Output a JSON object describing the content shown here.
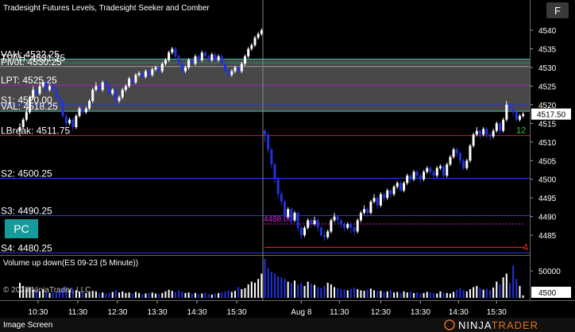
{
  "chart_data": {
    "type": "candlestick",
    "title": "Tradesight Futures Levels, Tradesight Seeker and Comber",
    "xlim": [
      -6,
      154
    ],
    "xticks": [
      {
        "value": 5.5,
        "label": "10:30"
      },
      {
        "value": 17.5,
        "label": "11:30"
      },
      {
        "value": 29.5,
        "label": "12:30"
      },
      {
        "value": 41.5,
        "label": "13:30"
      },
      {
        "value": 53.5,
        "label": "14:30"
      },
      {
        "value": 65.5,
        "label": "15:30"
      },
      {
        "value": 85,
        "label": "Aug 8"
      },
      {
        "value": 96.5,
        "label": "11:30"
      },
      {
        "value": 109,
        "label": "12:30"
      },
      {
        "value": 121,
        "label": "13:30"
      },
      {
        "value": 132.5,
        "label": "14:30"
      },
      {
        "value": 144,
        "label": "15:30"
      }
    ],
    "ylim": [
      4479.7,
      4548.1
    ],
    "yticks": [
      4485,
      4490,
      4495,
      4500,
      4505,
      4510,
      4515,
      4520,
      4525,
      4530,
      4535,
      4540
    ],
    "open": [
      4513,
      4514,
      4516,
      4518,
      4522,
      4524,
      4523,
      4525,
      4526,
      4524,
      4525,
      4524,
      4522,
      4521,
      4517,
      4515,
      4516,
      4514,
      4517,
      4519,
      4518,
      4519,
      4521,
      4524,
      4525,
      4524,
      4526,
      4525,
      4523,
      4524,
      4521,
      4522,
      4524,
      4525,
      4527,
      4526,
      4528,
      4528.5,
      4527.5,
      4529,
      4528,
      4529.5,
      4530,
      4529,
      4531,
      4532,
      4534,
      4535,
      4533,
      4531,
      4529,
      4530,
      4532,
      4531,
      4533,
      4532,
      4534,
      4533,
      4532,
      4533.5,
      4532,
      4533,
      4531,
      4529,
      4528,
      4529,
      4530,
      4529,
      4531,
      4533,
      4535,
      4536,
      4538,
      4539,
      4513,
      4512,
      4508,
      4504,
      4500,
      4496,
      4494,
      4490,
      4492,
      4489,
      4491,
      4487,
      4485,
      4487,
      4489,
      4488,
      4489,
      4487,
      4485,
      4484.5,
      4486,
      4489,
      4490,
      4489,
      4488,
      4487,
      4488,
      4487,
      4486,
      4489,
      4491,
      4492,
      4491,
      4494,
      4495,
      4493,
      4496,
      4495,
      4497,
      4496,
      4498,
      4499,
      4497,
      4499,
      4501,
      4500,
      4502,
      4501,
      4500,
      4502,
      4503,
      4502,
      4501,
      4503,
      4503.5,
      4501,
      4504,
      4506,
      4508,
      4507,
      4505,
      4503,
      4505,
      4509,
      4512,
      4513,
      4512,
      4513.5,
      4512,
      4511.5,
      4513,
      4515,
      4513,
      4516,
      4520,
      4519,
      4518,
      4516,
      4517
    ],
    "high": [
      4515,
      4516.5,
      4519,
      4522.5,
      4525,
      4524.5,
      4526,
      4526.5,
      4526.5,
      4525.5,
      4525.5,
      4524.5,
      4522.5,
      4521.5,
      4517.5,
      4516.5,
      4516.5,
      4517.5,
      4519.5,
      4519.5,
      4519.5,
      4521.5,
      4524.5,
      4526,
      4525.5,
      4526.5,
      4526.5,
      4525.5,
      4524.5,
      4524.5,
      4522.5,
      4524.5,
      4525.5,
      4527.5,
      4527.5,
      4528.5,
      4529,
      4529,
      4529.5,
      4529.5,
      4530,
      4530.5,
      4530.5,
      4531.5,
      4532.5,
      4534.5,
      4535.5,
      4535.5,
      4533.5,
      4531.5,
      4530.5,
      4532.5,
      4532.5,
      4533.5,
      4533.5,
      4534.5,
      4534.5,
      4533.5,
      4534,
      4534,
      4533.5,
      4533.5,
      4531.5,
      4529.5,
      4529.5,
      4530.5,
      4530.5,
      4531.5,
      4533.5,
      4535.5,
      4536.5,
      4538.5,
      4539.5,
      4540.5,
      4513.5,
      4512.5,
      4508.5,
      4504.5,
      4500.5,
      4497,
      4494.5,
      4492.5,
      4492.5,
      4491.5,
      4491.5,
      4487.5,
      4487.5,
      4489.5,
      4489.5,
      4490,
      4489.5,
      4487.5,
      4486,
      4486.5,
      4489.5,
      4491,
      4490.5,
      4489.5,
      4488.5,
      4488.5,
      4488.5,
      4487.5,
      4489.5,
      4491.5,
      4493,
      4492.5,
      4494.5,
      4496,
      4495.5,
      4496.5,
      4496.5,
      4497.5,
      4497.5,
      4498.5,
      4499.5,
      4499.5,
      4499.5,
      4501.5,
      4501.5,
      4502.5,
      4502.5,
      4501.5,
      4502.5,
      4503.5,
      4503.5,
      4502.5,
      4503.5,
      4504,
      4504,
      4504.5,
      4506.5,
      4508.5,
      4508.5,
      4507.5,
      4505.5,
      4505.5,
      4509.5,
      4512.5,
      4514,
      4513.5,
      4514,
      4514,
      4512.5,
      4513.5,
      4515.5,
      4515.5,
      4516.5,
      4521,
      4520.5,
      4519.5,
      4518.5,
      4517.5,
      4518
    ],
    "low": [
      4511.5,
      4513.5,
      4515.5,
      4517.5,
      4521.5,
      4522,
      4522.5,
      4524.5,
      4523.5,
      4523.5,
      4523.5,
      4521.5,
      4520,
      4516.5,
      4514,
      4514.5,
      4513,
      4513.5,
      4516.5,
      4517.5,
      4517.5,
      4518.5,
      4520.5,
      4523.5,
      4523.5,
      4523.5,
      4524.5,
      4522.5,
      4522.5,
      4520.5,
      4520.5,
      4521.5,
      4523.5,
      4524.5,
      4525.5,
      4525.5,
      4527.5,
      4527,
      4527,
      4527.5,
      4527.5,
      4529,
      4528.5,
      4528.5,
      4530.5,
      4531.5,
      4533.5,
      4532.5,
      4530.5,
      4528,
      4528.5,
      4529.5,
      4530.5,
      4530.5,
      4531.5,
      4531.5,
      4532.5,
      4531.5,
      4531.5,
      4531.5,
      4531.5,
      4530.5,
      4528.5,
      4527.5,
      4527.5,
      4528.5,
      4528.5,
      4528.5,
      4530.5,
      4532.5,
      4534.5,
      4535.5,
      4537.5,
      4538.5,
      4510,
      4507,
      4503,
      4499,
      4495,
      4493,
      4489,
      4489.5,
      4488,
      4488.5,
      4486,
      4484,
      4484.5,
      4486.5,
      4487,
      4487.5,
      4486,
      4484.5,
      4483.5,
      4484,
      4485.5,
      4488.5,
      4488,
      4487,
      4486,
      4486.5,
      4485.5,
      4485,
      4485.5,
      4488.5,
      4490.5,
      4490,
      4490.5,
      4493.5,
      4492,
      4492.5,
      4494,
      4494.5,
      4495,
      4495.5,
      4497.5,
      4496.5,
      4496.5,
      4498.5,
      4499,
      4499.5,
      4500,
      4499,
      4499.5,
      4501.5,
      4501,
      4500,
      4500.5,
      4502.5,
      4500.5,
      4500.5,
      4503.5,
      4505.5,
      4506,
      4504,
      4502.5,
      4502.5,
      4504.5,
      4508.5,
      4511.5,
      4511,
      4511.5,
      4511,
      4510.5,
      4511,
      4512.5,
      4512,
      4512.5,
      4515.5,
      4518,
      4517,
      4515.5,
      4515.5,
      4516.5
    ],
    "close": [
      4514,
      4516,
      4518,
      4522,
      4524,
      4523,
      4525,
      4526,
      4524,
      4525,
      4524,
      4522,
      4521,
      4517,
      4515,
      4516,
      4514,
      4517,
      4519,
      4518,
      4519,
      4521,
      4524,
      4525,
      4524,
      4526,
      4525,
      4523,
      4524,
      4521,
      4522,
      4524,
      4525,
      4527,
      4526,
      4528,
      4528.5,
      4527.5,
      4529,
      4528,
      4529.5,
      4530,
      4529,
      4531,
      4532,
      4534,
      4535,
      4533,
      4531,
      4529,
      4530,
      4532,
      4531,
      4533,
      4532,
      4534,
      4533,
      4532,
      4533.5,
      4532,
      4533,
      4531,
      4529,
      4528,
      4529,
      4530,
      4529,
      4531,
      4533,
      4535,
      4536,
      4538,
      4539,
      4540,
      4512,
      4508,
      4504,
      4500,
      4496,
      4494,
      4490,
      4492,
      4489,
      4491,
      4487,
      4485,
      4487,
      4489,
      4488,
      4489,
      4487,
      4485,
      4484.5,
      4486,
      4489,
      4490,
      4489,
      4488,
      4487,
      4488,
      4487,
      4486,
      4489,
      4491,
      4492,
      4491,
      4494,
      4495,
      4493,
      4496,
      4495,
      4497,
      4496,
      4498,
      4499,
      4497,
      4499,
      4501,
      4500,
      4502,
      4501,
      4500,
      4502,
      4503,
      4502,
      4501,
      4503,
      4503.5,
      4501,
      4504,
      4506,
      4508,
      4507,
      4505,
      4503,
      4505,
      4509,
      4512,
      4513,
      4512,
      4513.5,
      4512,
      4511.5,
      4513,
      4515,
      4513,
      4516,
      4520,
      4519,
      4518,
      4516,
      4517,
      4517.5
    ],
    "up_color": "#ffffff",
    "down_color": "#2233dd",
    "price_marker": {
      "value": 4517.5,
      "label": "4517.50"
    },
    "levels": [
      {
        "label": "VAH: 4532.25",
        "value": 4532.25,
        "color": "#3fb8a0"
      },
      {
        "label": "TVAH: 4531.25",
        "value": 4531.25,
        "color": "#2e8b57"
      },
      {
        "label": "Pivot: 4530.25",
        "value": 4530.25,
        "color": "#9a9a9a"
      },
      {
        "label": "LPT: 4525.25",
        "value": 4525.25,
        "color": "#a020c0"
      },
      {
        "label": "S1: 4520.00",
        "value": 4520,
        "color": "#2a3ad8"
      },
      {
        "label": "VAL: 4518.25",
        "value": 4518.25,
        "color": "#3fb8a0"
      },
      {
        "label": "LBreak: 4511.75",
        "value": 4511.75,
        "color": "#c81e1e"
      },
      {
        "label": "S2: 4500.25",
        "value": 4500.25,
        "color": "#2a3ad8"
      },
      {
        "label": "S3: 4490.25",
        "value": 4490.25,
        "color": "#2a3ad8"
      },
      {
        "label": "S4: 4480.25",
        "value": 4480.25,
        "color": "#2a3ad8"
      }
    ],
    "value_area_color": "#555555",
    "session_levels": [
      {
        "value": 4488,
        "label": "4488.00",
        "color": "#e020e0"
      },
      {
        "value": 4481.75,
        "label": "4",
        "color": "#e03030"
      }
    ],
    "bar_timer": "12",
    "volume": {
      "title": "Volume up down(ES 09-23 (5 Minute))",
      "ylim": [
        0,
        78000
      ],
      "yticks": [
        50000
      ],
      "values": [
        28000,
        22000,
        18000,
        20000,
        15000,
        14000,
        12000,
        16000,
        11000,
        9000,
        10000,
        12000,
        13000,
        18000,
        20000,
        15000,
        17000,
        14000,
        12000,
        10000,
        9000,
        11000,
        13000,
        12000,
        9000,
        10000,
        8000,
        9000,
        11000,
        14000,
        10000,
        12000,
        9000,
        10000,
        8000,
        11000,
        9000,
        7000,
        8000,
        9000,
        10000,
        8000,
        7000,
        9000,
        12000,
        15000,
        13000,
        11000,
        14000,
        12000,
        9000,
        10000,
        8000,
        9000,
        7000,
        8000,
        10000,
        7000,
        6000,
        8000,
        9000,
        10000,
        12000,
        14000,
        11000,
        13000,
        20000,
        16000,
        18000,
        25000,
        30000,
        28000,
        35000,
        45000,
        72000,
        55000,
        48000,
        45000,
        40000,
        38000,
        35000,
        30000,
        28000,
        32000,
        25000,
        27000,
        22000,
        30000,
        26000,
        24000,
        20000,
        18000,
        22000,
        28000,
        25000,
        20000,
        18000,
        16000,
        15000,
        14000,
        17000,
        19000,
        16000,
        14000,
        13000,
        15000,
        17000,
        14000,
        12000,
        13000,
        11000,
        12000,
        14000,
        10000,
        11000,
        9000,
        12000,
        10000,
        11000,
        9000,
        10000,
        8000,
        9000,
        11000,
        10000,
        9000,
        8000,
        12000,
        10000,
        9000,
        8000,
        11000,
        15000,
        18000,
        14000,
        12000,
        16000,
        20000,
        22000,
        18000,
        15000,
        17000,
        14000,
        19000,
        30000,
        25000,
        38000,
        45000,
        28000,
        60000,
        35000,
        22000,
        4500
      ]
    }
  },
  "button": "F",
  "pc_label": "PC",
  "copyright": "© 2023 NinjaTrader, LLC",
  "footer": "Image Screen",
  "logo": {
    "left": "NINJA",
    "right": "TRADER"
  }
}
